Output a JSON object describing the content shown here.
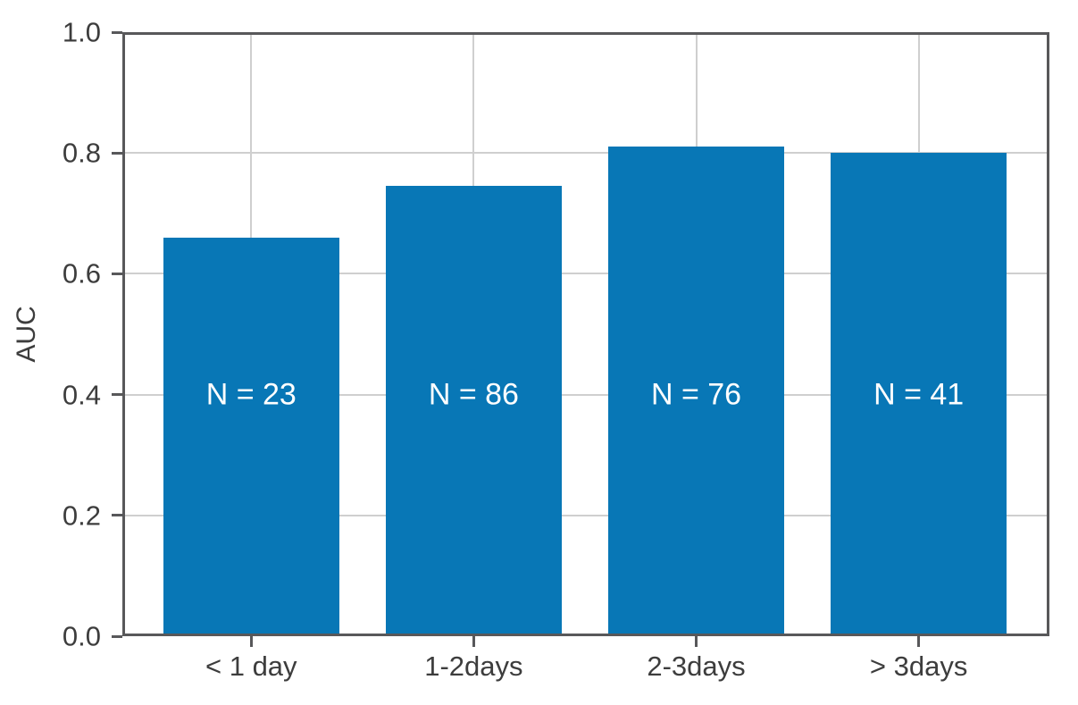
{
  "chart_data": {
    "type": "bar",
    "title": "",
    "xlabel": "",
    "ylabel": "AUC",
    "categories": [
      "< 1 day",
      "1-2days",
      "2-3days",
      "> 3days"
    ],
    "values": [
      0.66,
      0.745,
      0.81,
      0.8
    ],
    "bar_labels": [
      "N = 23",
      "N = 86",
      "N = 76",
      "N = 41"
    ],
    "bar_label_y": 0.4,
    "ylim": [
      0.0,
      1.0
    ],
    "ytick_labels": [
      "0.0",
      "0.2",
      "0.4",
      "0.6",
      "0.8",
      "1.0"
    ],
    "grid": true,
    "legend_position": "none",
    "colors": {
      "background": "#ffffff",
      "bar": "#0877b6",
      "bar_label_text": "#ffffff",
      "grid": "#cfcfcf",
      "spine": "#58585a",
      "tick_text": "#3d3d3d"
    }
  }
}
